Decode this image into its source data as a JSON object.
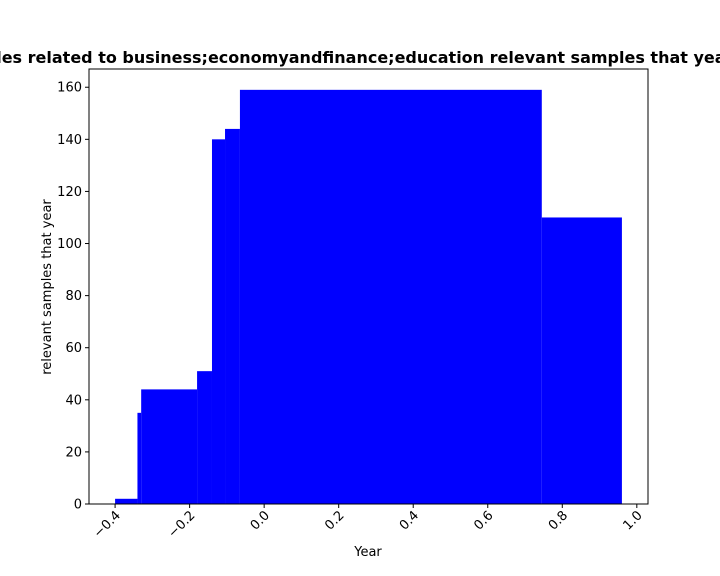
{
  "chart_data": {
    "type": "bar",
    "title": "Number of samples related to business;economyandfinance;education relevant samples that year in a given year",
    "xlabel": "Year",
    "ylabel": "relevant samples that year",
    "xlim": [
      -0.47,
      1.03
    ],
    "ylim": [
      0,
      167
    ],
    "x_ticks": [
      -0.4,
      -0.2,
      0.0,
      0.2,
      0.4,
      0.6,
      0.8,
      1.0
    ],
    "x_tick_labels": [
      "−0.4",
      "−0.2",
      "0.0",
      "0.2",
      "0.4",
      "0.6",
      "0.8",
      "1.0"
    ],
    "y_ticks": [
      0,
      20,
      40,
      60,
      80,
      100,
      120,
      140,
      160
    ],
    "y_tick_labels": [
      "0",
      "20",
      "40",
      "60",
      "80",
      "100",
      "120",
      "140",
      "160"
    ],
    "bar_color": "#0000ff",
    "grid": false,
    "legend": "none",
    "bars": [
      {
        "x0": -0.4,
        "x1": -0.34,
        "value": 2
      },
      {
        "x0": -0.34,
        "x1": -0.33,
        "value": 35
      },
      {
        "x0": -0.33,
        "x1": -0.18,
        "value": 44
      },
      {
        "x0": -0.18,
        "x1": -0.14,
        "value": 51
      },
      {
        "x0": -0.14,
        "x1": -0.105,
        "value": 140
      },
      {
        "x0": -0.105,
        "x1": -0.065,
        "value": 144
      },
      {
        "x0": -0.065,
        "x1": 0.745,
        "value": 159
      },
      {
        "x0": 0.745,
        "x1": 0.96,
        "value": 110
      }
    ]
  }
}
